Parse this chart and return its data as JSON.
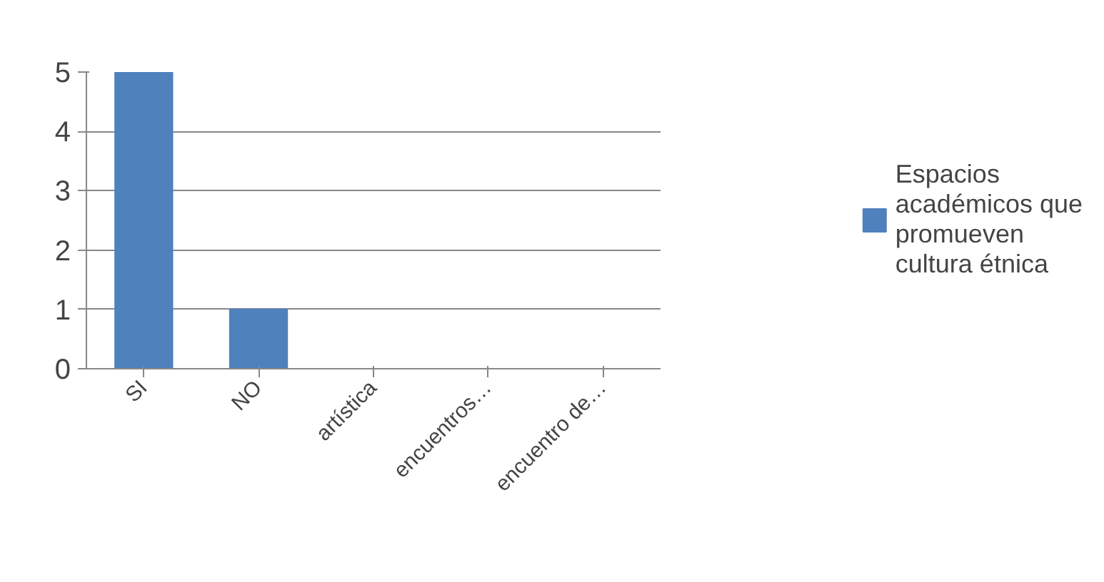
{
  "chart_data": {
    "type": "bar",
    "categories": [
      "SI",
      "NO",
      "artística",
      "encuentros…",
      "encuentro de…"
    ],
    "series": [
      {
        "name": "Espacios académicos que promueven cultura étnica",
        "color": "#4f81bd",
        "values": [
          5,
          1,
          0,
          0,
          0
        ]
      }
    ],
    "ylim": [
      0,
      5
    ],
    "yticks": [
      0,
      1,
      2,
      3,
      4,
      5
    ],
    "grid": "y",
    "legend": "right"
  }
}
